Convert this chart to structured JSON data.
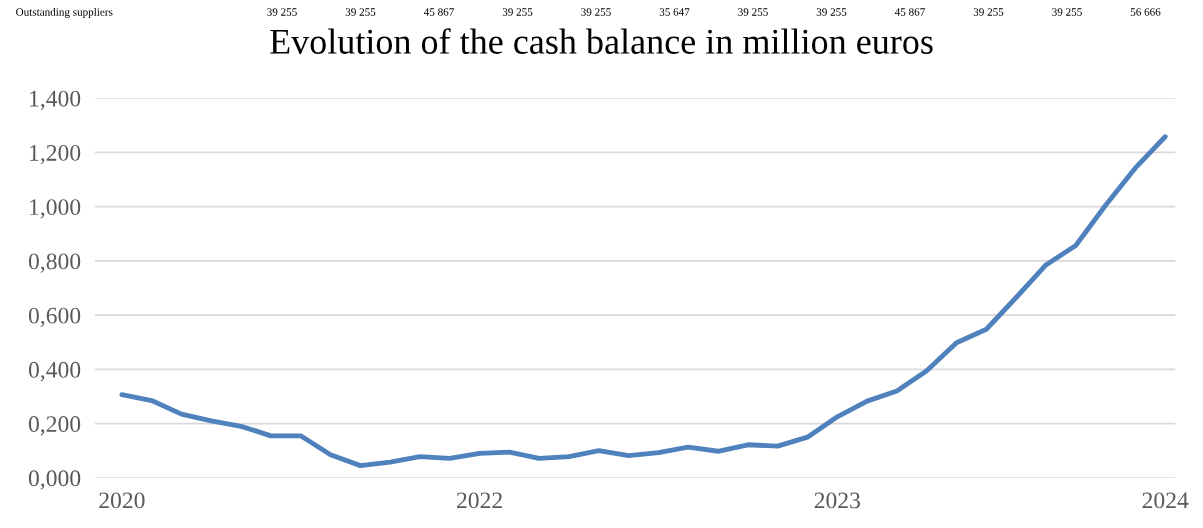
{
  "chart_data": {
    "type": "line",
    "title": "Evolution of the cash balance in million euros",
    "annotations": [
      "Outstanding suppliers",
      "39 255",
      "39 255",
      "45 867",
      "39 255",
      "39 255",
      "35 647",
      "39 255",
      "39 255",
      "45 867",
      "39 255",
      "39 255",
      "56 666"
    ],
    "categories": [
      "2020",
      null,
      null,
      null,
      null,
      null,
      null,
      null,
      null,
      null,
      null,
      null,
      "2022",
      null,
      null,
      null,
      null,
      null,
      null,
      null,
      null,
      null,
      null,
      null,
      "2023",
      null,
      null,
      null,
      null,
      null,
      null,
      null,
      null,
      null,
      null,
      "2024"
    ],
    "series": [
      {
        "color": "#4f81bd",
        "values": [
          0.307,
          0.285,
          0.235,
          0.21,
          0.19,
          0.155,
          0.155,
          0.085,
          0.045,
          0.058,
          0.078,
          0.072,
          0.09,
          0.095,
          0.072,
          0.078,
          0.1,
          0.082,
          0.093,
          0.113,
          0.098,
          0.122,
          0.117,
          0.15,
          0.225,
          0.283,
          0.32,
          0.395,
          0.498,
          0.548,
          0.665,
          0.785,
          0.857,
          1.005,
          1.143,
          1.258
        ]
      }
    ],
    "ylim": [
      0,
      1.4
    ],
    "yticks": [
      {
        "value": 0,
        "label": "0,000"
      },
      {
        "value": 0.2,
        "label": "0,200"
      },
      {
        "value": 0.4,
        "label": "0,400"
      },
      {
        "value": 0.6,
        "label": "0,600"
      },
      {
        "value": 0.8,
        "label": "0,800"
      },
      {
        "value": 1.0,
        "label": "1,000"
      },
      {
        "value": 1.2,
        "label": "1,200"
      },
      {
        "value": 1.4,
        "label": "1,400"
      }
    ],
    "grid": "y",
    "marker": "none",
    "line_style": "solid",
    "legend": false
  }
}
